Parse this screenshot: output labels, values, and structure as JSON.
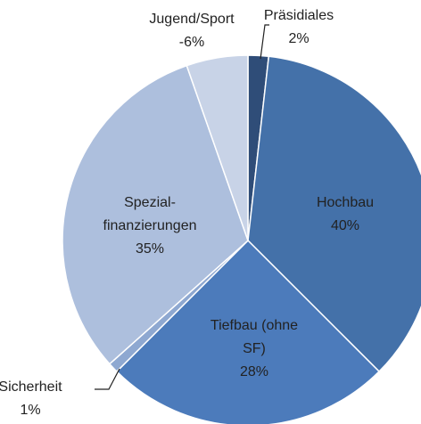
{
  "chart_data": {
    "type": "pie",
    "categories": [
      [
        "Präsidiales"
      ],
      [
        "Hochbau"
      ],
      [
        "Tiefbau (ohne",
        "SF)"
      ],
      [
        "Sicherheit"
      ],
      [
        "Spezial-",
        "finanzierungen"
      ],
      [
        "Jugend/Sport"
      ]
    ],
    "values": [
      2,
      40,
      28,
      1,
      35,
      -6
    ],
    "value_labels": [
      "2%",
      "40%",
      "28%",
      "1%",
      "35%",
      "-6%"
    ],
    "colors": [
      "#2f4d78",
      "#4471a9",
      "#4c7bbb",
      "#8ea8d1",
      "#adbfdd",
      "#c8d3e7"
    ]
  }
}
